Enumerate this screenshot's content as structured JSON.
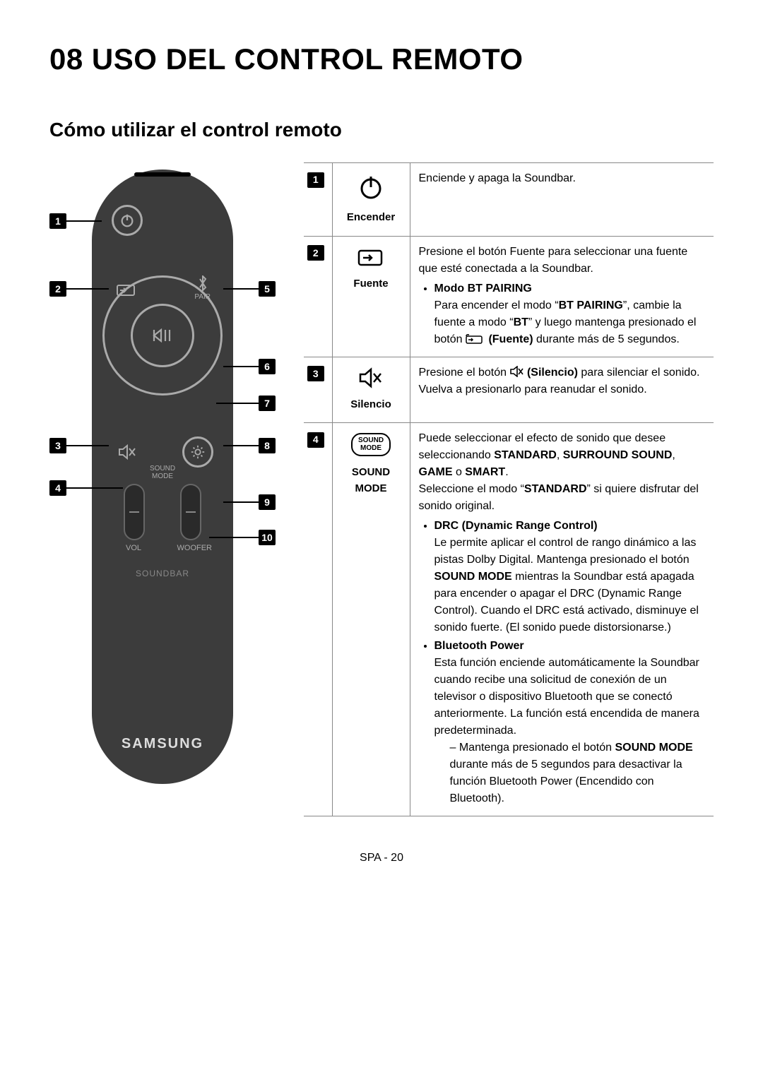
{
  "chapter": "08 USO DEL CONTROL REMOTO",
  "section": "Cómo utilizar el control remoto",
  "footer": "SPA - 20",
  "remote": {
    "pair": "PAIR",
    "sound_mode": "SOUND\nMODE",
    "vol": "VOL",
    "woofer": "WOOFER",
    "soundbar": "SOUNDBAR",
    "brand": "SAMSUNG"
  },
  "callouts": [
    "1",
    "2",
    "3",
    "4",
    "5",
    "6",
    "7",
    "8",
    "9",
    "10"
  ],
  "rows": [
    {
      "num": "1",
      "label": "Encender",
      "desc_html": "Enciende y apaga la Soundbar."
    },
    {
      "num": "2",
      "label": "Fuente",
      "desc_html": "Presione el botón Fuente para seleccionar una fuente que esté conectada a la Soundbar.<ul class='bullets'><li><b>Modo BT PAIRING</b><br>Para encender el modo &ldquo;<b>BT PAIRING</b>&rdquo;, cambie la fuente a modo &ldquo;<b>BT</b>&rdquo; y luego mantenga presionado el botón <svg width='28' height='14' viewBox='0 0 28 14' style='vertical-align:-2px'><rect x='1' y='3' width='22' height='10' rx='2' fill='none' stroke='#000' stroke-width='1.5'/><path d='M 4 8 L 10 8 M 8 6 L 10 8 L 8 10' fill='none' stroke='#000' stroke-width='1.5'/><path d='M 1 3 Q 1 0 5 1' fill='none' stroke='#000' stroke-width='1.5'/></svg> <b>(Fuente)</b> durante más de 5 segundos.</li></ul>"
    },
    {
      "num": "3",
      "label": "Silencio",
      "desc_html": "Presione el botón <svg width='20' height='16' viewBox='0 0 20 16' style='vertical-align:-2px'><path d='M 2 5 L 6 5 L 11 1 L 11 15 L 6 11 L 2 11 Z' fill='none' stroke='#000' stroke-width='1.6'/><path d='M 13 4 L 19 12 M 19 4 L 13 12' stroke='#000' stroke-width='1.6'/></svg> <b>(Silencio)</b> para silenciar el sonido. Vuelva a presionarlo para reanudar el sonido."
    },
    {
      "num": "4",
      "label": "SOUND MODE",
      "desc_html": "Puede seleccionar el efecto de sonido que desee seleccionando <b>STANDARD</b>, <b>SURROUND SOUND</b>, <b>GAME</b> o <b>SMART</b>.<br>Seleccione el modo &ldquo;<b>STANDARD</b>&rdquo; si quiere disfrutar del sonido original.<ul class='bullets'><li><b>DRC (Dynamic Range Control)</b><br>Le permite aplicar el control de rango dinámico a las pistas Dolby Digital. Mantenga presionado el botón <b>SOUND MODE</b> mientras la Soundbar está apagada para encender o apagar el DRC (Dynamic Range Control). Cuando el DRC está activado, disminuye el sonido fuerte. (El sonido puede distorsionarse.)</li><li><b>Bluetooth Power</b><br>Esta función enciende automáticamente la Soundbar cuando recibe una solicitud de conexión de un televisor o dispositivo Bluetooth que se conectó anteriormente. La función está encendida de manera predeterminada.<ul class='dash'><li>Mantenga presionado el botón <b>SOUND MODE</b> durante más de 5 segundos para desactivar la función Bluetooth Power (Encendido con Bluetooth).</li></ul></li></ul>"
    }
  ]
}
